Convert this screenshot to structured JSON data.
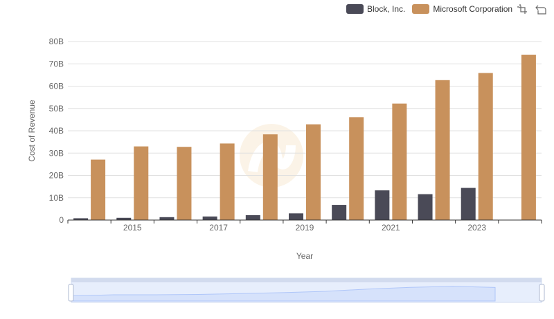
{
  "chart_data": {
    "type": "bar",
    "categories": [
      "2014",
      "2015",
      "2016",
      "2017",
      "2018",
      "2019",
      "2020",
      "2021",
      "2022",
      "2023",
      "2024"
    ],
    "x_tick_labels": [
      "2015",
      "2017",
      "2019",
      "2021",
      "2023"
    ],
    "y_tick_labels": [
      "0",
      "10B",
      "20B",
      "30B",
      "40B",
      "50B",
      "60B",
      "70B",
      "80B"
    ],
    "ylim": [
      0,
      80
    ],
    "xlabel": "Year",
    "ylabel": "Cost of Revenue",
    "grid": true,
    "legend_position": "top-right",
    "series": [
      {
        "name": "Block, Inc.",
        "color": "#4a4a57",
        "values": [
          0.8,
          1.0,
          1.3,
          1.6,
          2.2,
          3.0,
          6.8,
          13.3,
          11.6,
          14.4,
          null
        ]
      },
      {
        "name": "Microsoft Corporation",
        "color": "#c8915c",
        "values": [
          27.1,
          33.0,
          32.8,
          34.3,
          38.4,
          42.9,
          46.1,
          52.2,
          62.7,
          65.9,
          74.1
        ]
      }
    ]
  },
  "toolbox": {
    "zoom_icon": "zoom-icon",
    "restore_icon": "restore-icon"
  },
  "datazoom": {
    "fill_color": "#d6e2fb",
    "line_color": "#8fb0f7"
  }
}
